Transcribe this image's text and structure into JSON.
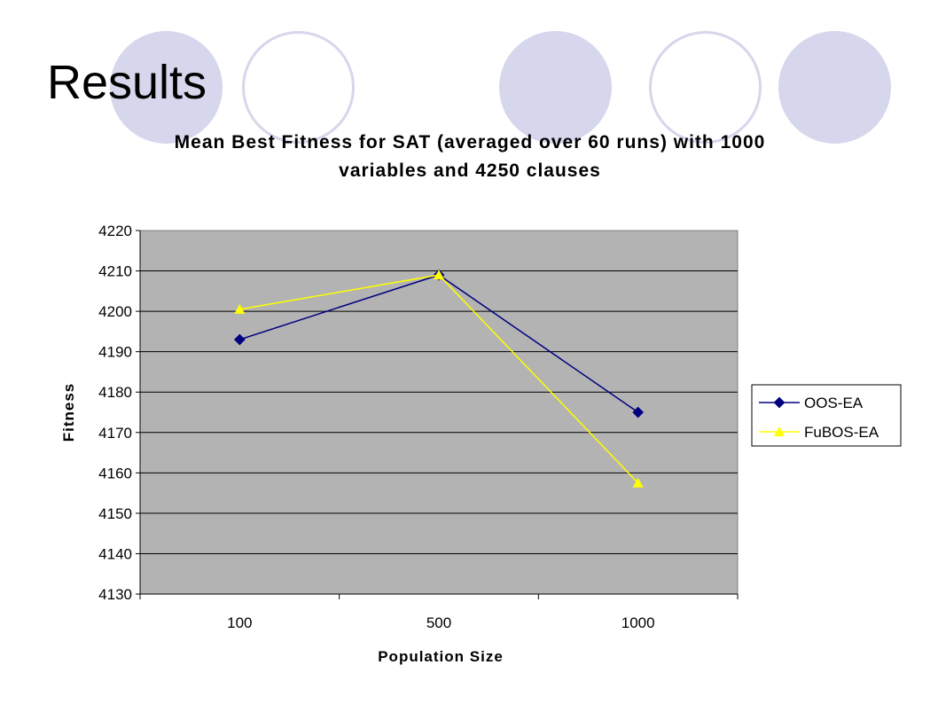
{
  "slide": {
    "title": "Results"
  },
  "colors": {
    "decoration": "#d6d6ec",
    "plot_background": "#b3b3b3",
    "series_1": "#000080",
    "series_2": "#ffff00"
  },
  "chart_data": {
    "type": "line",
    "title_lines": [
      "Mean Best Fitness for SAT (averaged over 60 runs) with 1000",
      "variables and 4250 clauses"
    ],
    "xlabel": "Population Size",
    "ylabel": "Fitness",
    "categories": [
      "100",
      "500",
      "1000"
    ],
    "ylim": [
      4130,
      4220
    ],
    "yticks": [
      "4130",
      "4140",
      "4150",
      "4160",
      "4170",
      "4180",
      "4190",
      "4200",
      "4210",
      "4220"
    ],
    "grid": true,
    "legend_position": "right",
    "series": [
      {
        "name": "OOS-EA",
        "values": [
          4193,
          4209,
          4175
        ],
        "color": "#000080",
        "marker": "diamond"
      },
      {
        "name": "FuBOS-EA",
        "values": [
          4200.5,
          4209,
          4157.5
        ],
        "color": "#ffff00",
        "marker": "triangle"
      }
    ]
  }
}
